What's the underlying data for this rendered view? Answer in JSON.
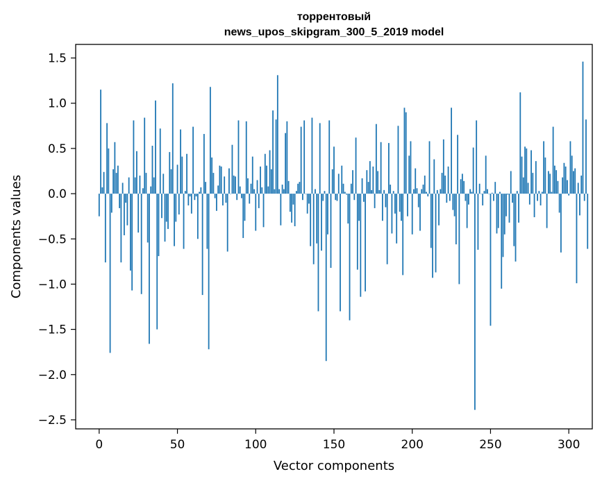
{
  "chart_data": {
    "type": "bar",
    "title": [
      "торрентовый",
      "news_upos_skipgram_300_5_2019 model"
    ],
    "xlabel": "Vector components",
    "ylabel": "Components values",
    "xlim": [
      -15,
      315
    ],
    "ylim": [
      -2.6,
      1.65
    ],
    "xticks": [
      0,
      50,
      100,
      150,
      200,
      250,
      300
    ],
    "yticks": [
      -2.5,
      -2.0,
      -1.5,
      -1.0,
      -0.5,
      0.0,
      0.5,
      1.0,
      1.5
    ],
    "ytick_labels": [
      "−2.5",
      "−2.0",
      "−1.5",
      "−1.0",
      "−0.5",
      "0.0",
      "0.5",
      "1.0",
      "1.5"
    ],
    "bar_color": "#1f77b4",
    "grid": false,
    "legend": "none",
    "values": [
      -0.25,
      1.15,
      0.07,
      0.24,
      -0.76,
      0.78,
      0.5,
      -1.76,
      -0.21,
      0.27,
      0.57,
      0.23,
      0.31,
      -0.16,
      -0.76,
      0.12,
      -0.46,
      -0.1,
      -0.35,
      0.18,
      -0.85,
      -1.07,
      0.81,
      0.18,
      0.47,
      -0.43,
      0.2,
      -1.11,
      0.06,
      0.84,
      0.23,
      -0.54,
      -1.66,
      0.08,
      0.53,
      0.18,
      1.03,
      -1.5,
      -0.69,
      0.72,
      -0.27,
      0.22,
      -0.53,
      -0.31,
      -0.39,
      0.46,
      0.27,
      1.22,
      -0.58,
      -0.31,
      0.32,
      -0.23,
      0.71,
      0.41,
      -0.61,
      0.03,
      0.44,
      -0.13,
      -0.03,
      -0.22,
      0.74,
      -0.07,
      -0.03,
      -0.5,
      0.02,
      0.07,
      -1.12,
      0.66,
      0.13,
      -0.61,
      -1.72,
      1.18,
      0.4,
      0.23,
      -0.05,
      -0.19,
      0.09,
      0.31,
      0.3,
      -0.13,
      0.19,
      -0.1,
      -0.64,
      0.28,
      0.0,
      0.54,
      0.2,
      0.19,
      -0.07,
      0.81,
      0.08,
      -0.05,
      -0.49,
      -0.3,
      0.8,
      0.17,
      -0.11,
      0.11,
      0.41,
      0.05,
      -0.41,
      0.15,
      -0.16,
      0.3,
      0.07,
      -0.37,
      0.44,
      0.31,
      0.08,
      0.48,
      0.27,
      0.92,
      0.05,
      0.82,
      1.31,
      0.05,
      -0.35,
      0.1,
      0.05,
      0.67,
      0.8,
      0.14,
      -0.2,
      -0.32,
      -0.12,
      -0.36,
      0.03,
      0.11,
      0.13,
      0.74,
      -0.07,
      0.81,
      0.0,
      -0.22,
      -0.11,
      -0.58,
      0.84,
      -0.78,
      0.05,
      -0.55,
      -1.3,
      0.78,
      -0.63,
      -0.08,
      0.03,
      -1.85,
      -0.45,
      0.81,
      -0.82,
      0.27,
      0.52,
      -0.07,
      -0.08,
      0.22,
      -1.3,
      0.31,
      0.11,
      0.02,
      -0.01,
      -0.33,
      -1.4,
      0.11,
      0.26,
      -0.07,
      0.62,
      -0.84,
      -0.3,
      -1.14,
      0.17,
      -0.09,
      -1.08,
      0.26,
      0.13,
      0.36,
      0.04,
      0.3,
      -0.16,
      0.77,
      0.25,
      0.04,
      0.57,
      -0.3,
      0.04,
      -0.15,
      -0.78,
      0.56,
      0.1,
      -0.44,
      0.03,
      -0.22,
      -0.55,
      0.75,
      -0.2,
      -0.3,
      -0.9,
      0.95,
      0.9,
      -0.25,
      0.42,
      0.58,
      -0.45,
      0.05,
      0.28,
      0.06,
      -0.15,
      -0.41,
      0.05,
      0.1,
      0.2,
      0.02,
      -0.03,
      0.58,
      -0.6,
      -0.93,
      0.38,
      -0.87,
      0.04,
      -0.35,
      0.05,
      0.23,
      0.6,
      0.2,
      -0.1,
      0.3,
      -0.08,
      0.95,
      -0.18,
      -0.25,
      -0.56,
      0.65,
      -1.0,
      0.16,
      0.22,
      0.14,
      -0.08,
      -0.38,
      -0.12,
      0.05,
      0.02,
      0.51,
      -2.39,
      0.81,
      -0.62,
      0.11,
      0.0,
      -0.13,
      0.03,
      0.42,
      0.05,
      0.0,
      -1.46,
      0.01,
      -0.08,
      0.13,
      -0.44,
      -0.38,
      0.02,
      -1.05,
      -0.7,
      -0.45,
      -0.25,
      -0.01,
      -0.32,
      0.25,
      -0.1,
      -0.58,
      -0.75,
      0.03,
      -0.32,
      1.12,
      0.41,
      0.18,
      0.52,
      0.5,
      0.12,
      -0.12,
      0.48,
      0.23,
      -0.26,
      0.36,
      -0.08,
      0.03,
      -0.13,
      0.02,
      0.58,
      0.4,
      -0.38,
      0.25,
      0.22,
      0.02,
      0.74,
      0.31,
      0.26,
      0.14,
      -0.21,
      -0.65,
      0.18,
      0.34,
      0.3,
      0.15,
      -0.02,
      0.58,
      0.42,
      0.25,
      0.28,
      -0.99,
      0.12,
      -0.24,
      0.2,
      1.46,
      -0.08,
      0.82,
      -0.61
    ]
  }
}
